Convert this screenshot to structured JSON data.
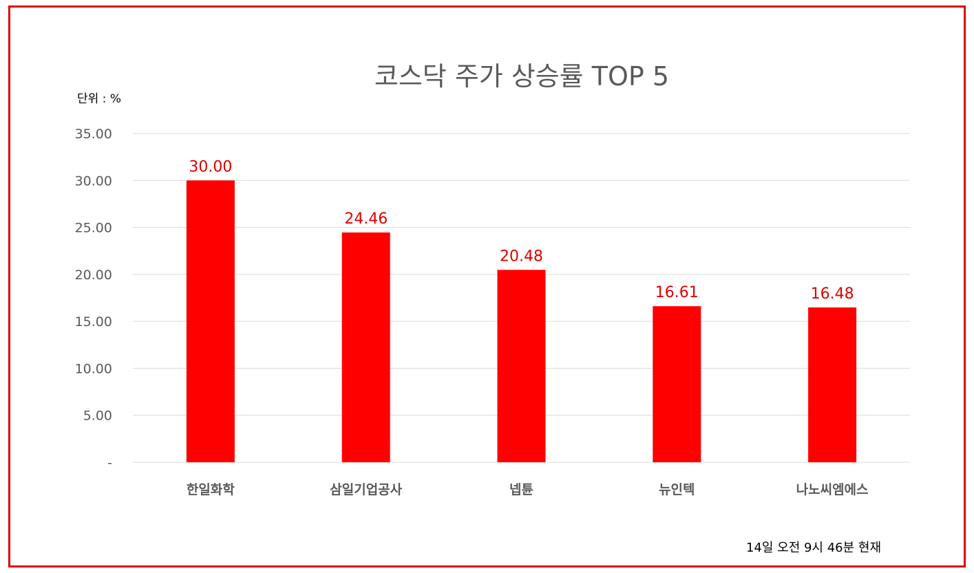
{
  "chart_data": {
    "type": "bar",
    "title": "코스닥 주가 상승률 TOP 5",
    "unit_label": "단위 : %",
    "categories": [
      "한일화학",
      "삼일기업공사",
      "넵튠",
      "뉴인텍",
      "나노씨엠에스"
    ],
    "values": [
      30.0,
      24.46,
      20.48,
      16.61,
      16.48
    ],
    "value_labels": [
      "30.00",
      "24.46",
      "20.48",
      "16.61",
      "16.48"
    ],
    "ylim": [
      0,
      35
    ],
    "yticks": [
      0,
      5,
      10,
      15,
      20,
      25,
      30,
      35
    ],
    "ytick_labels": [
      "-",
      "5.00",
      "10.00",
      "15.00",
      "20.00",
      "25.00",
      "30.00",
      "35.00"
    ],
    "grid": true,
    "bar_color": "#ff0000",
    "label_color": "#e00000",
    "note": "14일  오전 9시 46분 현재"
  }
}
